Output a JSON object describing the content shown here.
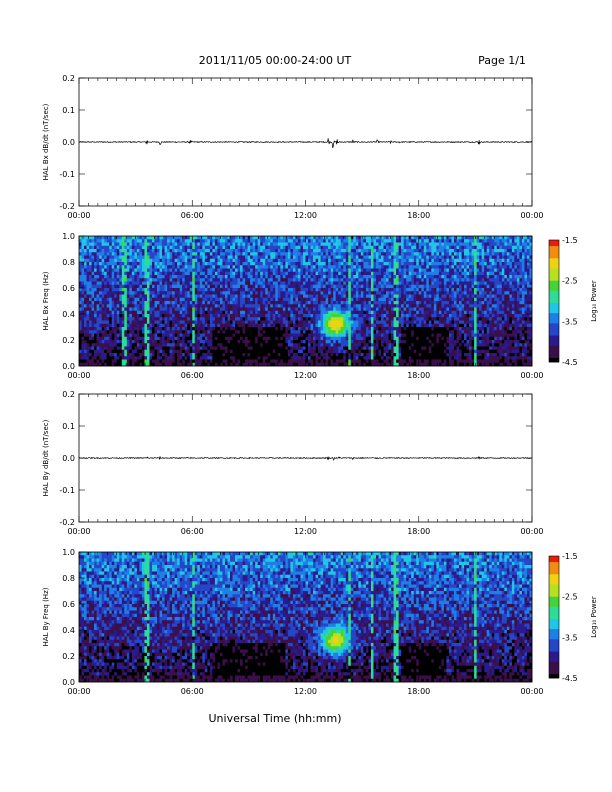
{
  "header": {
    "title": "2011/11/05  00:00-24:00 UT",
    "page": "Page 1/1"
  },
  "xlabel": "Universal Time (hh:mm)",
  "colors": {
    "trace": "#000000",
    "colormap": [
      "#000000",
      "#3a0f4a",
      "#2a1a8c",
      "#2646c8",
      "#1e7fe6",
      "#20c6e6",
      "#2edc9a",
      "#46d23a",
      "#b6e020",
      "#f0d214",
      "#f08c10",
      "#e61e10"
    ]
  },
  "chart_data": [
    {
      "type": "line",
      "name": "bx-dbdt",
      "ylabel": "HAL Bx dB/dt (nT/sec)",
      "ylim": [
        -0.2,
        0.2
      ],
      "yticks": [
        "0.2",
        "0.1",
        "0.0",
        "-0.1",
        "-0.2"
      ],
      "xticks": [
        "00:00",
        "06:00",
        "12:00",
        "18:00",
        "00:00"
      ],
      "xlim_hours": [
        0,
        24
      ],
      "bursts": [
        {
          "t": 3.6,
          "amp": 0.012
        },
        {
          "t": 4.3,
          "amp": 0.012
        },
        {
          "t": 5.9,
          "amp": 0.008
        },
        {
          "t": 13.2,
          "amp": 0.02
        },
        {
          "t": 13.45,
          "amp": 0.025
        },
        {
          "t": 13.7,
          "amp": 0.02
        },
        {
          "t": 14.5,
          "amp": 0.01
        },
        {
          "t": 15.2,
          "amp": 0.008
        },
        {
          "t": 15.8,
          "amp": 0.008
        },
        {
          "t": 16.5,
          "amp": 0.006
        },
        {
          "t": 17.0,
          "amp": 0.006
        },
        {
          "t": 21.2,
          "amp": 0.012
        }
      ]
    },
    {
      "type": "heatmap",
      "name": "bx-spectrogram",
      "ylabel": "HAL Bx Freq (Hz)",
      "ylim": [
        0.0,
        1.0
      ],
      "yticks": [
        "1.0",
        "0.8",
        "0.6",
        "0.4",
        "0.2",
        "0.0"
      ],
      "xticks": [
        "00:00",
        "06:00",
        "12:00",
        "18:00",
        "00:00"
      ],
      "colorbar_label": "Log₁₀ Power",
      "colorbar_range": [
        -4.5,
        -1.5
      ],
      "colorbar_ticks": [
        "-1.5",
        "-2.5",
        "-3.5",
        "-4.5"
      ],
      "vertical_stripes_hours": [
        2.4,
        3.6,
        6.1,
        14.3,
        15.5,
        16.8,
        21.0
      ],
      "hot_spot": {
        "t": 13.6,
        "f": 0.32,
        "level": -2.0
      }
    },
    {
      "type": "line",
      "name": "by-dbdt",
      "ylabel": "HAL By dB/dt (nT/sec)",
      "ylim": [
        -0.2,
        0.2
      ],
      "yticks": [
        "0.2",
        "0.1",
        "0.0",
        "-0.1",
        "-0.2"
      ],
      "xticks": [
        "00:00",
        "06:00",
        "12:00",
        "18:00",
        "00:00"
      ],
      "xlim_hours": [
        0,
        24
      ],
      "bursts": [
        {
          "t": 3.6,
          "amp": 0.006
        },
        {
          "t": 4.3,
          "amp": 0.006
        },
        {
          "t": 13.2,
          "amp": 0.006
        },
        {
          "t": 13.5,
          "amp": 0.008
        },
        {
          "t": 13.8,
          "amp": 0.006
        },
        {
          "t": 14.5,
          "amp": 0.005
        },
        {
          "t": 15.8,
          "amp": 0.004
        },
        {
          "t": 21.2,
          "amp": 0.005
        }
      ]
    },
    {
      "type": "heatmap",
      "name": "by-spectrogram",
      "ylabel": "HAL By Freq (Hz)",
      "ylim": [
        0.0,
        1.0
      ],
      "yticks": [
        "1.0",
        "0.8",
        "0.6",
        "0.4",
        "0.2",
        "0.0"
      ],
      "xticks": [
        "00:00",
        "06:00",
        "12:00",
        "18:00",
        "00:00"
      ],
      "colorbar_label": "Log₁₀ Power",
      "colorbar_range": [
        -4.5,
        -1.5
      ],
      "colorbar_ticks": [
        "-1.5",
        "-2.5",
        "-3.5",
        "-4.5"
      ],
      "vertical_stripes_hours": [
        3.6,
        6.1,
        14.3,
        15.5,
        16.8,
        21.0
      ],
      "hot_spot": {
        "t": 13.6,
        "f": 0.32,
        "level": -2.1
      }
    }
  ]
}
